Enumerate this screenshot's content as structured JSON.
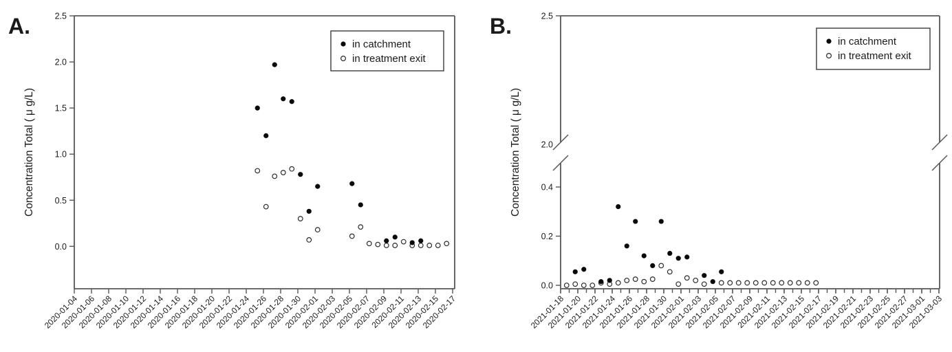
{
  "colors": {
    "background": "#ffffff",
    "axis": "#565656",
    "text": "#1a1a1a",
    "marker_filled": "#0a0a0a",
    "marker_open_stroke": "#2b2b2b",
    "marker_open_fill": "#ffffff"
  },
  "legend": {
    "entries": [
      {
        "marker": "filled-circle",
        "label": "in catchment"
      },
      {
        "marker": "open-circle",
        "label": "in treatment exit"
      }
    ]
  },
  "chart_data": [
    {
      "type": "scatter",
      "panel_label": "A.",
      "title": "",
      "ylabel": "Concentration Total ( μ g/L)",
      "xlabel": "",
      "grid": false,
      "legend_position": "top-right",
      "legend_entries": [
        {
          "marker": "filled-circle",
          "label": "in catchment"
        },
        {
          "marker": "open-circle",
          "label": "in treatment exit"
        }
      ],
      "y_axis": {
        "ticks": [
          "0.0",
          "0.5",
          "1.0",
          "1.5",
          "2.0",
          "2.5"
        ],
        "ylim": [
          -0.46,
          2.5
        ],
        "break": null
      },
      "x_axis": {
        "tick_step_days": 2,
        "minor_ticks_daily": false,
        "tick_labels": [
          "2020-01-04",
          "2020-01-06",
          "2020-01-08",
          "2020-01-10",
          "2020-01-12",
          "2020-01-14",
          "2020-01-16",
          "2020-01-18",
          "2020-01-20",
          "2020-01-22",
          "2020-01-24",
          "2020-01-26",
          "2020-01-28",
          "2020-01-30",
          "2020-02-01",
          "2020-02-03",
          "2020-02-05",
          "2020-02-07",
          "2020-02-09",
          "2020-02-11",
          "2020-02-13",
          "2020-02-15",
          "2020-02-17"
        ]
      },
      "series": [
        {
          "name": "in catchment",
          "marker": "filled-circle",
          "points": [
            [
              "2020-01-25",
              1.5
            ],
            [
              "2020-01-26",
              1.2
            ],
            [
              "2020-01-27",
              1.97
            ],
            [
              "2020-01-28",
              1.6
            ],
            [
              "2020-01-29",
              1.57
            ],
            [
              "2020-01-30",
              0.78
            ],
            [
              "2020-01-31",
              0.38
            ],
            [
              "2020-02-01",
              0.65
            ],
            [
              "2020-02-05",
              0.68
            ],
            [
              "2020-02-06",
              0.45
            ],
            [
              "2020-02-09",
              0.06
            ],
            [
              "2020-02-10",
              0.1
            ],
            [
              "2020-02-12",
              0.04
            ],
            [
              "2020-02-13",
              0.06
            ]
          ]
        },
        {
          "name": "in treatment exit",
          "marker": "open-circle",
          "points": [
            [
              "2020-01-25",
              0.82
            ],
            [
              "2020-01-26",
              0.43
            ],
            [
              "2020-01-27",
              0.76
            ],
            [
              "2020-01-28",
              0.8
            ],
            [
              "2020-01-29",
              0.84
            ],
            [
              "2020-01-30",
              0.3
            ],
            [
              "2020-01-31",
              0.07
            ],
            [
              "2020-02-01",
              0.18
            ],
            [
              "2020-02-05",
              0.11
            ],
            [
              "2020-02-06",
              0.21
            ],
            [
              "2020-02-07",
              0.03
            ],
            [
              "2020-02-08",
              0.02
            ],
            [
              "2020-02-09",
              0.01
            ],
            [
              "2020-02-10",
              0.01
            ],
            [
              "2020-02-11",
              0.05
            ],
            [
              "2020-02-12",
              0.01
            ],
            [
              "2020-02-13",
              0.01
            ],
            [
              "2020-02-14",
              0.01
            ],
            [
              "2020-02-15",
              0.01
            ],
            [
              "2020-02-16",
              0.03
            ]
          ]
        }
      ]
    },
    {
      "type": "scatter",
      "panel_label": "B.",
      "title": "",
      "ylabel": "Concentration Total ( μ g/L)",
      "xlabel": "",
      "grid": false,
      "legend_position": "top-right",
      "legend_entries": [
        {
          "marker": "filled-circle",
          "label": "in catchment"
        },
        {
          "marker": "open-circle",
          "label": "in treatment exit"
        }
      ],
      "y_axis": {
        "ticks": [
          "0.0",
          "0.2",
          "0.4",
          "2.0",
          "2.5"
        ],
        "ylim": [
          0,
          2.5
        ],
        "break": {
          "between": [
            0.5,
            2.0
          ]
        }
      },
      "x_axis": {
        "tick_step_days": 2,
        "minor_ticks_daily": true,
        "tick_labels": [
          "2021-01-18",
          "2021-01-20",
          "2021-01-22",
          "2021-01-24",
          "2021-01-26",
          "2021-01-28",
          "2021-01-30",
          "2021-02-01",
          "2021-02-03",
          "2021-02-05",
          "2021-02-07",
          "2021-02-09",
          "2021-02-11",
          "2021-02-13",
          "2021-02-15",
          "2021-02-17",
          "2021-02-19",
          "2021-02-21",
          "2021-02-23",
          "2021-02-25",
          "2021-02-27",
          "2021-03-01",
          "2021-03-03"
        ]
      },
      "series": [
        {
          "name": "in catchment",
          "marker": "filled-circle",
          "points": [
            [
              "2021-01-20",
              0.055
            ],
            [
              "2021-01-21",
              0.065
            ],
            [
              "2021-01-23",
              0.015
            ],
            [
              "2021-01-24",
              0.02
            ],
            [
              "2021-01-25",
              0.32
            ],
            [
              "2021-01-26",
              0.16
            ],
            [
              "2021-01-27",
              0.26
            ],
            [
              "2021-01-28",
              0.12
            ],
            [
              "2021-01-29",
              0.08
            ],
            [
              "2021-01-30",
              0.26
            ],
            [
              "2021-01-31",
              0.13
            ],
            [
              "2021-02-01",
              0.11
            ],
            [
              "2021-02-02",
              0.115
            ],
            [
              "2021-02-04",
              0.04
            ],
            [
              "2021-02-05",
              0.015
            ],
            [
              "2021-02-06",
              0.055
            ]
          ]
        },
        {
          "name": "in treatment exit",
          "marker": "open-circle",
          "points": [
            [
              "2021-01-19",
              0.0
            ],
            [
              "2021-01-20",
              0.005
            ],
            [
              "2021-01-21",
              0.0
            ],
            [
              "2021-01-22",
              0.0
            ],
            [
              "2021-01-23",
              0.01
            ],
            [
              "2021-01-24",
              0.005
            ],
            [
              "2021-01-25",
              0.01
            ],
            [
              "2021-01-26",
              0.02
            ],
            [
              "2021-01-27",
              0.025
            ],
            [
              "2021-01-28",
              0.015
            ],
            [
              "2021-01-29",
              0.025
            ],
            [
              "2021-01-30",
              0.08
            ],
            [
              "2021-01-31",
              0.055
            ],
            [
              "2021-02-01",
              0.005
            ],
            [
              "2021-02-02",
              0.03
            ],
            [
              "2021-02-03",
              0.02
            ],
            [
              "2021-02-04",
              0.005
            ],
            [
              "2021-02-06",
              0.01
            ],
            [
              "2021-02-07",
              0.01
            ],
            [
              "2021-02-08",
              0.01
            ],
            [
              "2021-02-09",
              0.01
            ],
            [
              "2021-02-10",
              0.01
            ],
            [
              "2021-02-11",
              0.01
            ],
            [
              "2021-02-12",
              0.01
            ],
            [
              "2021-02-13",
              0.01
            ],
            [
              "2021-02-14",
              0.01
            ],
            [
              "2021-02-15",
              0.01
            ],
            [
              "2021-02-16",
              0.01
            ],
            [
              "2021-02-17",
              0.01
            ]
          ]
        }
      ]
    }
  ]
}
